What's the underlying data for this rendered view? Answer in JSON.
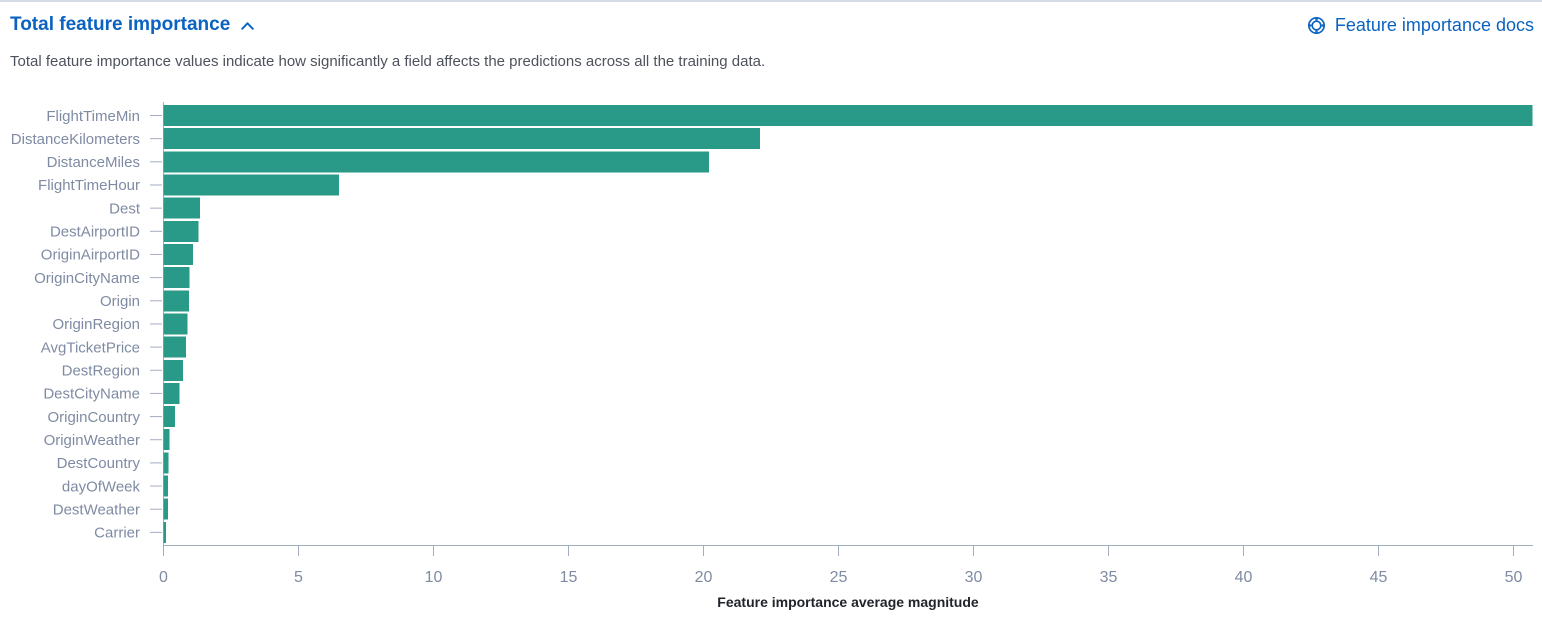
{
  "header": {
    "title": "Total feature importance",
    "docs_link_label": "Feature importance docs"
  },
  "description": "Total feature importance values indicate how significantly a field affects the predictions across all the training data.",
  "icons": {
    "collapse": "chevron-up-icon",
    "docs": "help-docs-icon"
  },
  "colors": {
    "link_blue": "#0b63c1",
    "bar_teal": "#299a88",
    "axis_gray": "#a3adc0",
    "axis_label_slate": "#7f8ba3",
    "axis_title_dark": "#20242b"
  },
  "chart_data": {
    "type": "bar",
    "orientation": "horizontal",
    "title": "Total feature importance",
    "xlabel": "Feature importance average magnitude",
    "ylabel": "",
    "categories": [
      "FlightTimeMin",
      "DistanceKilometers",
      "DistanceMiles",
      "FlightTimeHour",
      "Dest",
      "DestAirportID",
      "OriginAirportID",
      "OriginCityName",
      "Origin",
      "OriginRegion",
      "AvgTicketPrice",
      "DestRegion",
      "DestCityName",
      "OriginCountry",
      "OriginWeather",
      "DestCountry",
      "dayOfWeek",
      "DestWeather",
      "Carrier"
    ],
    "values": [
      50.7,
      22.1,
      20.2,
      6.5,
      1.35,
      1.3,
      1.1,
      0.97,
      0.94,
      0.88,
      0.84,
      0.73,
      0.6,
      0.42,
      0.22,
      0.18,
      0.17,
      0.16,
      0.1
    ],
    "x_ticks": [
      0,
      5,
      10,
      15,
      20,
      25,
      30,
      35,
      40,
      45,
      50
    ],
    "xlim": [
      0,
      50.74
    ],
    "grid": false,
    "legend": false,
    "bar_color": "#299a88"
  }
}
